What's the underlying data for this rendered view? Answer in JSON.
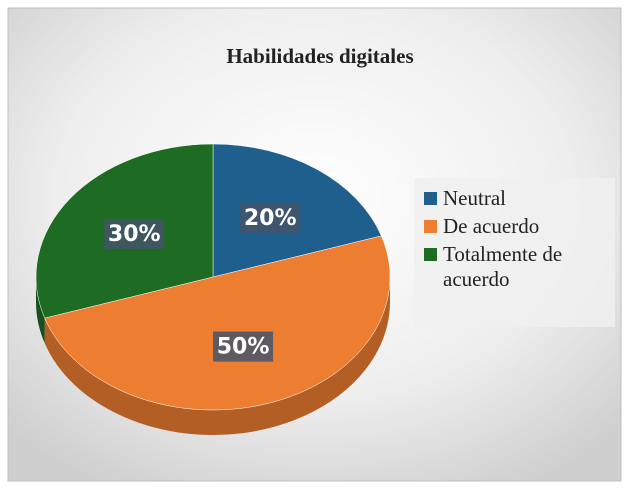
{
  "chart_data": {
    "type": "pie",
    "title": "Habilidades digitales",
    "categories": [
      "Neutral",
      "De acuerdo",
      "Totalmente de acuerdo"
    ],
    "values": [
      20,
      50,
      30
    ],
    "value_labels": [
      "20%",
      "50%",
      "30%"
    ],
    "colors": [
      "#1f5f8e",
      "#ed7d31",
      "#1e6b24"
    ],
    "legend": "right"
  }
}
